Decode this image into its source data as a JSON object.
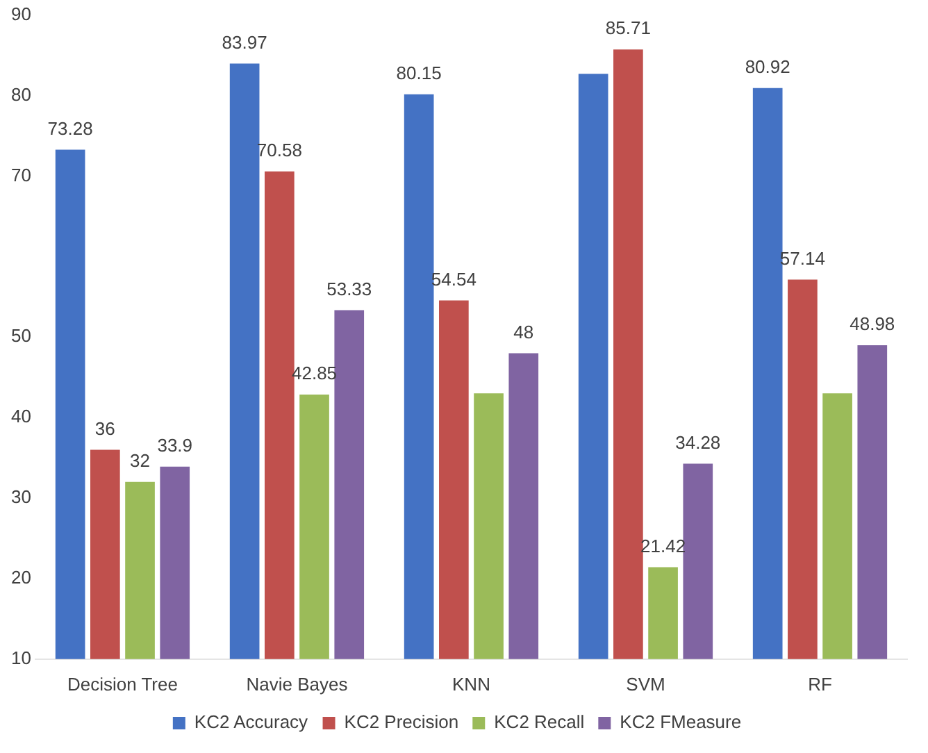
{
  "chart_data": {
    "type": "bar",
    "categories": [
      "Decision Tree",
      "Navie Bayes",
      "KNN",
      "SVM",
      "RF"
    ],
    "series": [
      {
        "name": "KC2 Accuracy",
        "color": "#4472c4",
        "values": [
          73.28,
          83.97,
          80.15,
          82.7,
          80.92
        ],
        "value_labels": [
          "73.28",
          "83.97",
          "80.15",
          null,
          "80.92"
        ]
      },
      {
        "name": "KC2 Precision",
        "color": "#c0504d",
        "values": [
          36,
          70.58,
          54.54,
          85.71,
          57.14
        ],
        "value_labels": [
          "36",
          "70.58",
          "54.54",
          "85.71",
          "57.14"
        ]
      },
      {
        "name": "KC2 Recall",
        "color": "#9bbb59",
        "values": [
          32,
          42.85,
          43,
          21.42,
          43
        ],
        "value_labels": [
          "32",
          "42.85",
          null,
          "21.42",
          null
        ]
      },
      {
        "name": "KC2 FMeasure",
        "color": "#8064a2",
        "values": [
          33.9,
          53.33,
          48,
          34.28,
          48.98
        ],
        "value_labels": [
          "33.9",
          "53.33",
          "48",
          "34.28",
          "48.98"
        ]
      }
    ],
    "ylim": [
      10,
      90
    ],
    "yticks": [
      10,
      20,
      30,
      40,
      50,
      70,
      80,
      90
    ],
    "grid": false,
    "legend": "bottom"
  }
}
